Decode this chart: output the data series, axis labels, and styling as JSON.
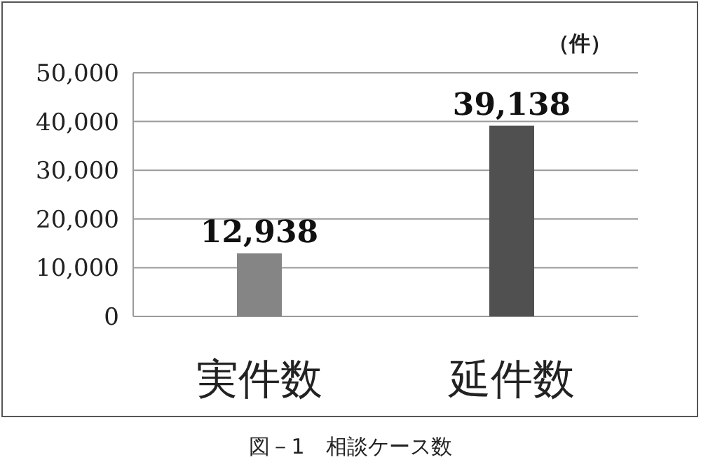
{
  "chart_data": {
    "type": "bar",
    "title": "図－1　相談ケース数",
    "ylabel": "（件）",
    "categories": [
      "実件数",
      "延件数"
    ],
    "values": [
      12938,
      39138
    ],
    "colors": [
      "#858585",
      "#505050"
    ],
    "value_labels": [
      "12,938",
      "39,138"
    ],
    "ylim": [
      0,
      50000
    ],
    "yticks": [
      {
        "value": 0,
        "label": "0"
      },
      {
        "value": 10000,
        "label": "10,000"
      },
      {
        "value": 20000,
        "label": "20,000"
      },
      {
        "value": 30000,
        "label": "30,000"
      },
      {
        "value": 40000,
        "label": "40,000"
      },
      {
        "value": 50000,
        "label": "50,000"
      }
    ],
    "grid": "y"
  }
}
